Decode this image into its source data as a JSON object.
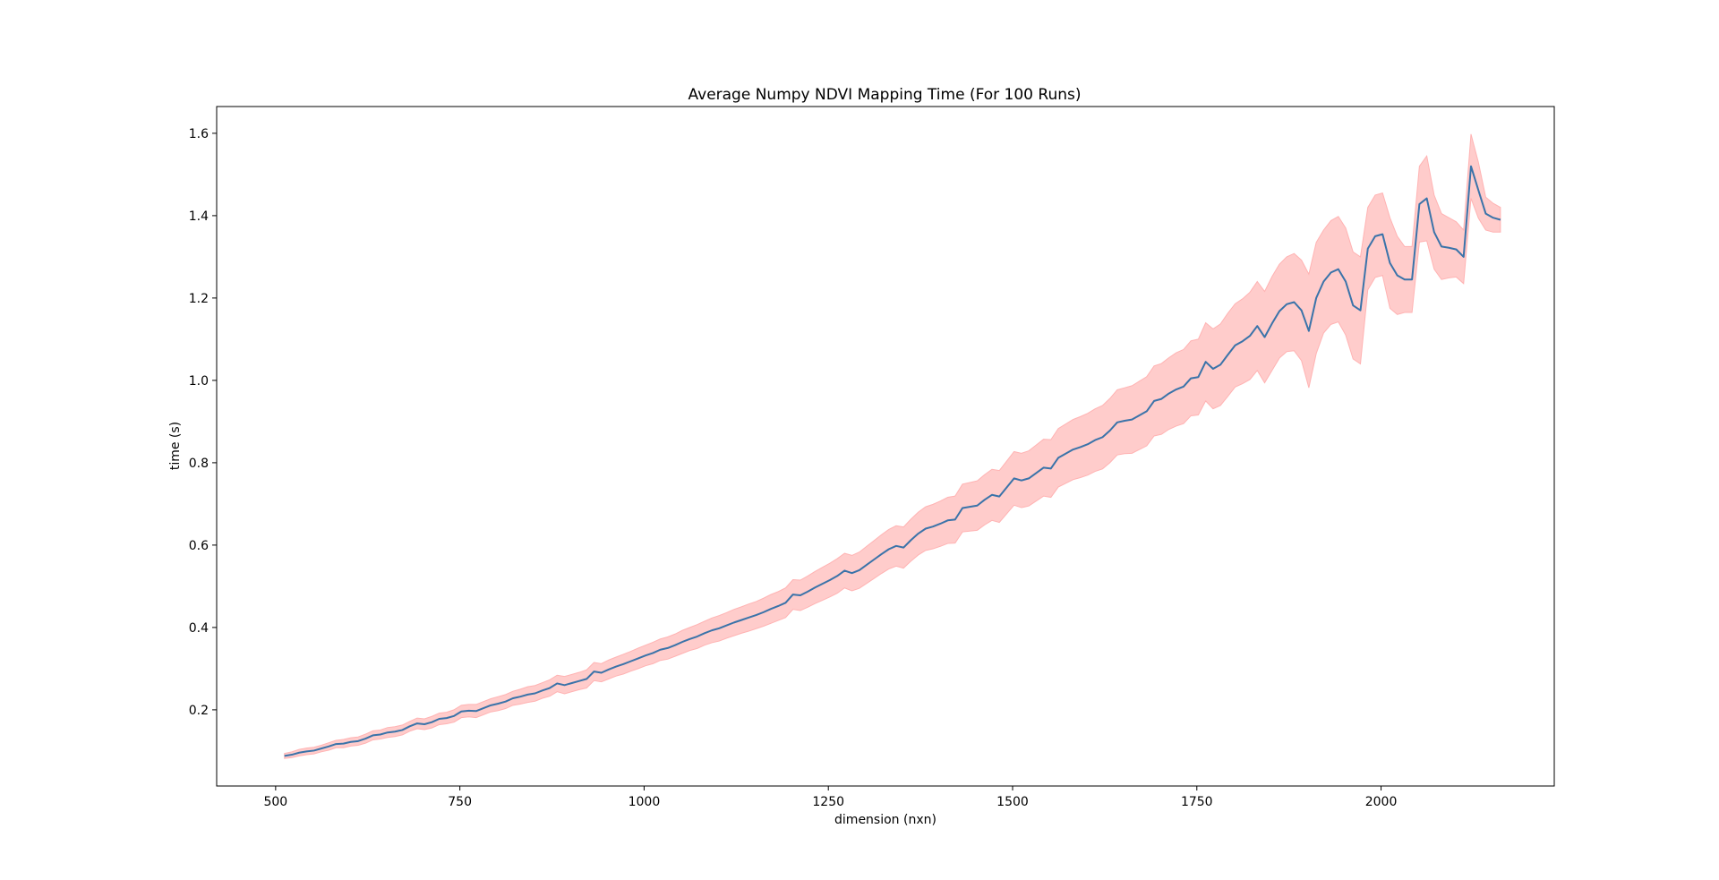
{
  "chart_data": {
    "type": "line",
    "title": "Average Numpy NDVI Mapping Time (For 100 Runs)",
    "xlabel": "dimension (nxn)",
    "ylabel": "time (s)",
    "xlim": [
      420,
      2235
    ],
    "ylim": [
      0.015,
      1.665
    ],
    "xticks": [
      500,
      750,
      1000,
      1250,
      1500,
      1750,
      2000
    ],
    "yticks": [
      0.2,
      0.4,
      0.6,
      0.8,
      1.0,
      1.2,
      1.4,
      1.6
    ],
    "ytick_labels": [
      "0.2",
      "0.4",
      "0.6",
      "0.8",
      "1.0",
      "1.2",
      "1.4",
      "1.6"
    ],
    "grid": false,
    "colors": {
      "line": "#3a73a9",
      "band": "#ffcccb",
      "band_edge": "#ffb3b3"
    },
    "series": [
      {
        "x": [
          512,
          522,
          532,
          542,
          552,
          562,
          572,
          582,
          592,
          602,
          612,
          622,
          632,
          642,
          652,
          662,
          672,
          682,
          692,
          702,
          712,
          722,
          732,
          742,
          752,
          762,
          772,
          782,
          792,
          802,
          812,
          822,
          832,
          842,
          852,
          862,
          872,
          882,
          892,
          902,
          912,
          922,
          932,
          942,
          952,
          962,
          972,
          982,
          992,
          1002,
          1012,
          1022,
          1032,
          1042,
          1052,
          1062,
          1072,
          1082,
          1092,
          1102,
          1112,
          1122,
          1132,
          1142,
          1152,
          1162,
          1172,
          1182,
          1192,
          1202,
          1212,
          1222,
          1232,
          1242,
          1252,
          1262,
          1272,
          1282,
          1292,
          1302,
          1312,
          1322,
          1332,
          1342,
          1352,
          1362,
          1372,
          1382,
          1392,
          1402,
          1412,
          1422,
          1432,
          1442,
          1452,
          1462,
          1472,
          1482,
          1492,
          1502,
          1512,
          1522,
          1532,
          1542,
          1552,
          1562,
          1572,
          1582,
          1592,
          1602,
          1612,
          1622,
          1632,
          1642,
          1652,
          1662,
          1672,
          1682,
          1692,
          1702,
          1712,
          1722,
          1732,
          1742,
          1752,
          1762,
          1772,
          1782,
          1792,
          1802,
          1812,
          1822,
          1832,
          1842,
          1852,
          1862,
          1872,
          1882,
          1892,
          1902,
          1912,
          1922,
          1932,
          1942,
          1952,
          1962,
          1972,
          1982,
          1992,
          2002,
          2012,
          2022,
          2032,
          2042,
          2052,
          2062,
          2072,
          2082,
          2092,
          2102,
          2112,
          2122,
          2132,
          2142,
          2152,
          2162
        ],
        "values": [
          0.088,
          0.091,
          0.096,
          0.099,
          0.101,
          0.106,
          0.111,
          0.117,
          0.118,
          0.122,
          0.124,
          0.13,
          0.138,
          0.14,
          0.145,
          0.147,
          0.151,
          0.16,
          0.167,
          0.165,
          0.17,
          0.178,
          0.18,
          0.185,
          0.196,
          0.198,
          0.197,
          0.204,
          0.211,
          0.215,
          0.22,
          0.228,
          0.232,
          0.237,
          0.24,
          0.247,
          0.253,
          0.264,
          0.26,
          0.265,
          0.27,
          0.275,
          0.293,
          0.29,
          0.298,
          0.305,
          0.311,
          0.318,
          0.325,
          0.332,
          0.338,
          0.346,
          0.35,
          0.357,
          0.365,
          0.372,
          0.378,
          0.386,
          0.393,
          0.398,
          0.405,
          0.412,
          0.418,
          0.424,
          0.43,
          0.437,
          0.445,
          0.452,
          0.46,
          0.48,
          0.478,
          0.487,
          0.497,
          0.506,
          0.515,
          0.525,
          0.538,
          0.532,
          0.539,
          0.552,
          0.565,
          0.578,
          0.59,
          0.598,
          0.594,
          0.612,
          0.628,
          0.64,
          0.645,
          0.652,
          0.66,
          0.662,
          0.69,
          0.693,
          0.696,
          0.71,
          0.722,
          0.718,
          0.74,
          0.762,
          0.757,
          0.762,
          0.775,
          0.788,
          0.786,
          0.812,
          0.822,
          0.832,
          0.838,
          0.845,
          0.855,
          0.862,
          0.878,
          0.898,
          0.902,
          0.905,
          0.915,
          0.925,
          0.95,
          0.955,
          0.968,
          0.978,
          0.985,
          1.005,
          1.008,
          1.045,
          1.028,
          1.038,
          1.062,
          1.085,
          1.095,
          1.108,
          1.132,
          1.105,
          1.138,
          1.168,
          1.185,
          1.19,
          1.17,
          1.12,
          1.2,
          1.24,
          1.262,
          1.27,
          1.24,
          1.182,
          1.17,
          1.32,
          1.35,
          1.355,
          1.285,
          1.255,
          1.245,
          1.245,
          1.428,
          1.442,
          1.36,
          1.325,
          1.322,
          1.318,
          1.3,
          1.52,
          1.462,
          1.405,
          1.395,
          1.39
        ],
        "upper": [
          0.094,
          0.098,
          0.104,
          0.107,
          0.109,
          0.114,
          0.12,
          0.126,
          0.128,
          0.132,
          0.134,
          0.141,
          0.149,
          0.151,
          0.157,
          0.159,
          0.163,
          0.172,
          0.18,
          0.178,
          0.184,
          0.192,
          0.194,
          0.2,
          0.211,
          0.213,
          0.213,
          0.22,
          0.227,
          0.232,
          0.237,
          0.245,
          0.25,
          0.256,
          0.259,
          0.266,
          0.273,
          0.284,
          0.281,
          0.286,
          0.291,
          0.297,
          0.315,
          0.312,
          0.321,
          0.328,
          0.335,
          0.342,
          0.35,
          0.357,
          0.364,
          0.372,
          0.377,
          0.384,
          0.393,
          0.4,
          0.407,
          0.415,
          0.423,
          0.429,
          0.436,
          0.444,
          0.45,
          0.457,
          0.463,
          0.471,
          0.48,
          0.487,
          0.496,
          0.516,
          0.515,
          0.525,
          0.536,
          0.546,
          0.556,
          0.567,
          0.58,
          0.575,
          0.583,
          0.597,
          0.611,
          0.625,
          0.638,
          0.647,
          0.644,
          0.663,
          0.68,
          0.693,
          0.699,
          0.707,
          0.716,
          0.719,
          0.748,
          0.752,
          0.756,
          0.771,
          0.784,
          0.781,
          0.804,
          0.827,
          0.823,
          0.829,
          0.843,
          0.857,
          0.856,
          0.883,
          0.894,
          0.905,
          0.912,
          0.92,
          0.931,
          0.939,
          0.956,
          0.977,
          0.982,
          0.987,
          0.998,
          1.009,
          1.035,
          1.041,
          1.055,
          1.067,
          1.075,
          1.096,
          1.1,
          1.14,
          1.125,
          1.137,
          1.163,
          1.186,
          1.198,
          1.214,
          1.24,
          1.216,
          1.252,
          1.282,
          1.3,
          1.308,
          1.292,
          1.258,
          1.335,
          1.365,
          1.388,
          1.398,
          1.37,
          1.312,
          1.3,
          1.42,
          1.45,
          1.455,
          1.395,
          1.35,
          1.325,
          1.325,
          1.52,
          1.545,
          1.45,
          1.405,
          1.395,
          1.385,
          1.365,
          1.598,
          1.53,
          1.445,
          1.43,
          1.42
        ],
        "lower": [
          0.082,
          0.084,
          0.088,
          0.091,
          0.093,
          0.098,
          0.102,
          0.108,
          0.108,
          0.112,
          0.114,
          0.119,
          0.127,
          0.129,
          0.133,
          0.135,
          0.139,
          0.148,
          0.154,
          0.152,
          0.156,
          0.164,
          0.166,
          0.17,
          0.181,
          0.183,
          0.181,
          0.188,
          0.195,
          0.198,
          0.203,
          0.211,
          0.214,
          0.218,
          0.221,
          0.228,
          0.233,
          0.244,
          0.239,
          0.244,
          0.249,
          0.253,
          0.271,
          0.268,
          0.275,
          0.282,
          0.287,
          0.294,
          0.3,
          0.307,
          0.312,
          0.32,
          0.323,
          0.33,
          0.337,
          0.344,
          0.349,
          0.357,
          0.363,
          0.367,
          0.374,
          0.38,
          0.386,
          0.391,
          0.397,
          0.403,
          0.41,
          0.417,
          0.424,
          0.444,
          0.441,
          0.449,
          0.458,
          0.466,
          0.474,
          0.483,
          0.496,
          0.489,
          0.495,
          0.507,
          0.519,
          0.531,
          0.542,
          0.549,
          0.544,
          0.561,
          0.576,
          0.587,
          0.591,
          0.597,
          0.604,
          0.605,
          0.632,
          0.634,
          0.636,
          0.649,
          0.66,
          0.655,
          0.676,
          0.697,
          0.691,
          0.695,
          0.707,
          0.719,
          0.716,
          0.741,
          0.75,
          0.759,
          0.764,
          0.77,
          0.779,
          0.785,
          0.8,
          0.819,
          0.822,
          0.823,
          0.832,
          0.841,
          0.865,
          0.869,
          0.881,
          0.889,
          0.895,
          0.914,
          0.916,
          0.95,
          0.931,
          0.939,
          0.961,
          0.984,
          0.992,
          1.002,
          1.024,
          0.994,
          1.024,
          1.054,
          1.07,
          1.072,
          1.048,
          0.982,
          1.065,
          1.115,
          1.136,
          1.142,
          1.11,
          1.052,
          1.04,
          1.22,
          1.25,
          1.255,
          1.175,
          1.16,
          1.165,
          1.165,
          1.336,
          1.339,
          1.27,
          1.245,
          1.249,
          1.251,
          1.235,
          1.442,
          1.394,
          1.365,
          1.36,
          1.36
        ]
      }
    ]
  }
}
